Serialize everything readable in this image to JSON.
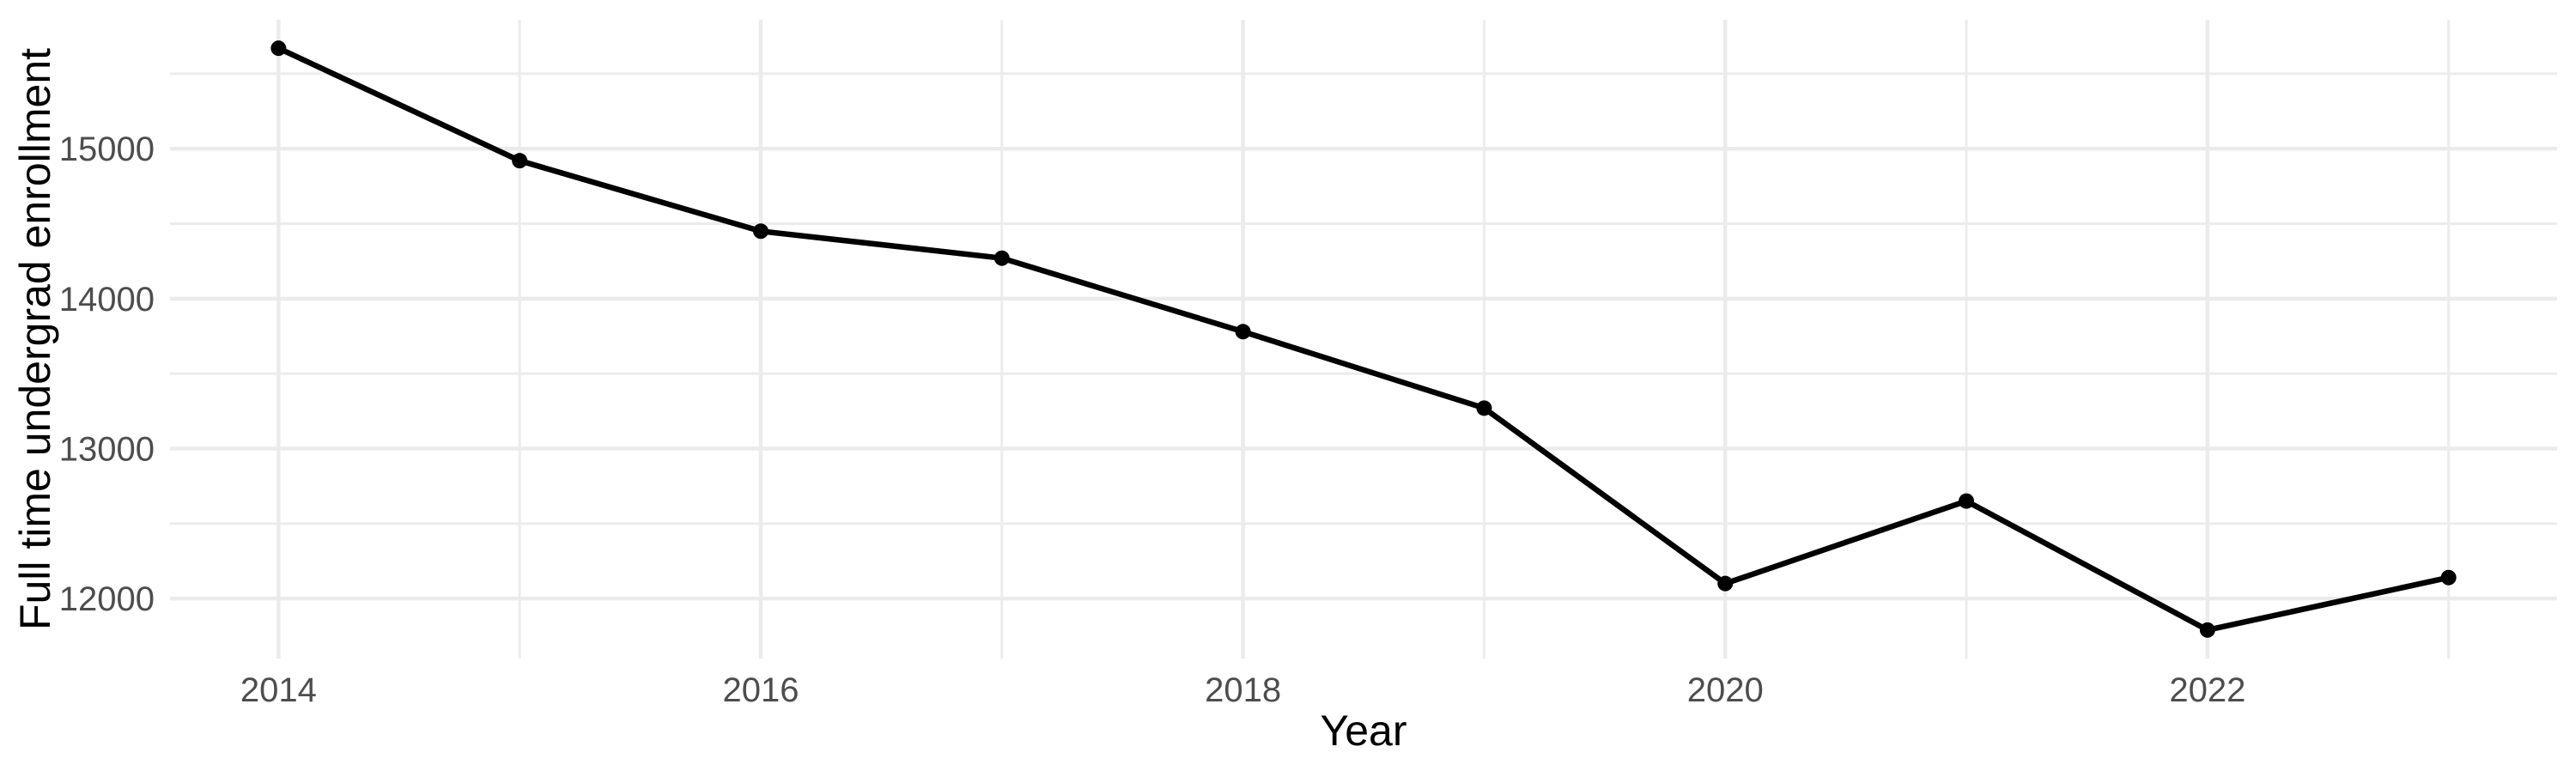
{
  "figure": {
    "kind": "ggplot-style line chart",
    "background": "#FFFFFF"
  },
  "chart_data": {
    "type": "line",
    "title": "",
    "xlabel": "Year",
    "ylabel": "Full time undergrad enrollment",
    "x": [
      2014,
      2015,
      2016,
      2017,
      2018,
      2019,
      2020,
      2021,
      2022,
      2023
    ],
    "series": [
      {
        "name": "Full time undergrad enrollment",
        "values": [
          15670,
          14920,
          14450,
          14270,
          13780,
          13270,
          12100,
          12650,
          11790,
          12140
        ]
      }
    ],
    "xlim": [
      2013.55,
      2023.45
    ],
    "ylim": [
      11600,
      15860
    ],
    "x_major_ticks": [
      2014,
      2016,
      2018,
      2020,
      2022
    ],
    "x_minor_gridlines": [
      2015,
      2017,
      2019,
      2021,
      2023
    ],
    "y_major_ticks": [
      12000,
      13000,
      14000,
      15000
    ],
    "y_minor_gridlines": [
      12500,
      13500,
      14500,
      15500
    ],
    "grid": "major+minor",
    "legend": "none",
    "point_marker": "circle",
    "colors": {
      "line": "#000000",
      "point": "#000000",
      "grid_major": "#EBEBEB",
      "grid_minor": "#ECECEC",
      "tick_label": "#4D4D4D",
      "axis_title": "#000000",
      "panel_background": "#FFFFFF"
    }
  }
}
